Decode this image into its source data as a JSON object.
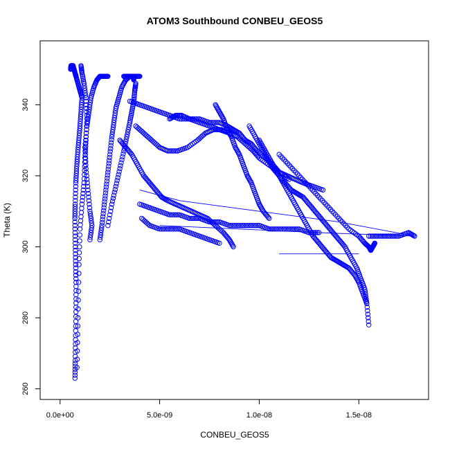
{
  "chart_data": {
    "type": "scatter",
    "title": "ATOM3 Southbound CONBEU_GEOS5",
    "xlabel": "CONBEU_GEOS5",
    "ylabel": "Theta (K)",
    "xlim": [
      -1e-09,
      1.85e-08
    ],
    "ylim": [
      257,
      358
    ],
    "x_ticks": [
      0,
      5e-09,
      1e-08,
      1.5e-08
    ],
    "x_tick_labels": [
      "0.0e+00",
      "5.0e-09",
      "1.0e-08",
      "1.5e-08"
    ],
    "y_ticks": [
      260,
      280,
      300,
      320,
      340
    ],
    "y_tick_labels": [
      "260",
      "280",
      "300",
      "320",
      "340"
    ],
    "color": "#0000ff",
    "marker": "open-circle",
    "grid": false,
    "legend": "none",
    "series": [
      {
        "x": [
          7.5e-10,
          7.6e-10,
          7.8e-10,
          8e-10,
          8e-10,
          7.8e-10,
          7.6e-10,
          7.4e-10,
          7.6e-10,
          7.9e-10,
          8.3e-10,
          8.8e-10,
          9.4e-10,
          1e-09,
          1.05e-09,
          1.1e-09,
          1e-09,
          9e-10,
          8e-10,
          7.5e-10,
          7e-10,
          6.5e-10,
          6e-10,
          5.5e-10,
          5.3e-10
        ],
        "y": [
          263,
          268,
          275,
          283,
          290,
          296,
          302,
          308,
          312,
          318,
          322,
          326,
          330,
          334,
          338,
          342,
          344,
          346,
          348,
          349,
          350,
          351,
          351,
          351,
          350
        ]
      },
      {
        "x": [
          8.5e-10,
          9e-10,
          9.5e-10,
          1e-09,
          1.1e-09,
          1.2e-09,
          1.25e-09,
          1.3e-09,
          1.35e-09,
          1.3e-09,
          1.2e-09,
          1.1e-09,
          1.05e-09
        ],
        "y": [
          266,
          280,
          295,
          305,
          312,
          318,
          325,
          330,
          336,
          342,
          346,
          349,
          351
        ]
      },
      {
        "x": [
          1.5e-09,
          1.6e-09,
          1.5e-09,
          1.4e-09,
          1.3e-09,
          1.25e-09,
          1.35e-09,
          1.45e-09,
          1.55e-09,
          1.7e-09,
          1.85e-09,
          2e-09,
          2.2e-09,
          2.4e-09
        ],
        "y": [
          302,
          306,
          310,
          316,
          322,
          328,
          334,
          338,
          342,
          345,
          347,
          348,
          348,
          348
        ]
      },
      {
        "x": [
          2e-09,
          2.1e-09,
          2.2e-09,
          2.3e-09,
          2.4e-09,
          2.5e-09,
          2.6e-09,
          2.7e-09,
          2.8e-09,
          2.95e-09,
          3.1e-09,
          3.3e-09,
          3.5e-09,
          3.65e-09,
          3.7e-09
        ],
        "y": [
          302,
          306,
          311,
          316,
          321,
          326,
          331,
          335,
          339,
          342,
          345,
          347,
          348,
          348,
          347
        ]
      },
      {
        "x": [
          2.4e-09,
          2.6e-09,
          2.8e-09,
          3e-09,
          3.2e-09,
          3.35e-09,
          3.5e-09,
          3.6e-09,
          3.7e-09,
          3.75e-09,
          3.8e-09
        ],
        "y": [
          306,
          312,
          317,
          322,
          327,
          331,
          335,
          338,
          341,
          344,
          346
        ]
      },
      {
        "x": [
          3e-09,
          3.3e-09,
          3.6e-09,
          3.9e-09,
          4.2e-09,
          4.5e-09,
          4.8e-09,
          5.1e-09,
          5.4e-09,
          5.8e-09,
          6.2e-09,
          6.6e-09,
          7e-09,
          7.4e-09,
          7.8e-09,
          8.2e-09,
          8.5e-09,
          8.7e-09
        ],
        "y": [
          330,
          328,
          326,
          323,
          320,
          318,
          316,
          314,
          313,
          312,
          311,
          310,
          309,
          308,
          306,
          304,
          302,
          300
        ]
      },
      {
        "x": [
          3.8e-09,
          4.2e-09,
          4.6e-09,
          5e-09,
          5.4e-09,
          5.9e-09,
          6.4e-09,
          6.9e-09,
          7.3e-09,
          7.7e-09,
          8.1e-09,
          8.5e-09,
          8.9e-09,
          9.3e-09,
          9.7e-09,
          1e-08,
          1.05e-08,
          1.1e-08,
          1.15e-08
        ],
        "y": [
          334,
          332,
          330,
          328,
          327,
          327,
          328,
          330,
          332,
          333,
          333,
          332,
          331,
          329,
          327,
          325,
          323,
          321,
          319
        ]
      },
      {
        "x": [
          5.5e-09,
          5.8e-09,
          6.1e-09,
          6.5e-09,
          7e-09,
          7.5e-09,
          8e-09,
          8.4e-09,
          8.7e-09,
          9e-09,
          9.3e-09,
          9.6e-09,
          9.9e-09,
          1.03e-08,
          1.07e-08,
          1.1e-08,
          1.14e-08,
          1.18e-08,
          1.22e-08,
          1.27e-08,
          1.32e-08
        ],
        "y": [
          336,
          337,
          337,
          336,
          336,
          335,
          335,
          334,
          333,
          332,
          330,
          329,
          327,
          325,
          323,
          321,
          320,
          319,
          318,
          317,
          316
        ]
      },
      {
        "x": [
          7.8e-09,
          8e-09,
          8.2e-09,
          8.4e-09,
          8.6e-09,
          8.8e-09,
          9e-09,
          9.2e-09,
          9.4e-09,
          9.6e-09,
          9.8e-09,
          1e-08,
          1.02e-08,
          1.05e-08
        ],
        "y": [
          340,
          338,
          336,
          333,
          331,
          328,
          326,
          323,
          320,
          318,
          315,
          312,
          310,
          308
        ]
      },
      {
        "x": [
          9.5e-09,
          9.8e-09,
          1.01e-08,
          1.04e-08,
          1.07e-08,
          1.1e-08,
          1.13e-08,
          1.16e-08,
          1.19e-08,
          1.22e-08,
          1.25e-08,
          1.28e-08,
          1.31e-08,
          1.34e-08,
          1.37e-08,
          1.4e-08,
          1.43e-08,
          1.46e-08,
          1.49e-08,
          1.51e-08,
          1.53e-08,
          1.54e-08,
          1.55e-08
        ],
        "y": [
          334,
          331,
          328,
          325,
          322,
          320,
          318,
          316,
          315,
          314,
          312,
          310,
          308,
          306,
          304,
          302,
          300,
          297,
          294,
          291,
          288,
          284,
          278
        ]
      },
      {
        "x": [
          1e-08,
          1.03e-08,
          1.06e-08,
          1.09e-08,
          1.12e-08,
          1.15e-08,
          1.18e-08,
          1.21e-08,
          1.24e-08,
          1.27e-08,
          1.3e-08,
          1.33e-08,
          1.36e-08,
          1.39e-08,
          1.42e-08,
          1.45e-08,
          1.48e-08,
          1.5e-08,
          1.52e-08,
          1.54e-08
        ],
        "y": [
          330,
          327,
          324,
          321,
          318,
          315,
          312,
          309,
          306,
          303,
          301,
          299,
          297,
          296,
          295,
          294,
          292,
          290,
          287,
          284
        ]
      },
      {
        "x": [
          1.1e-08,
          1.15e-08,
          1.2e-08,
          1.25e-08,
          1.3e-08,
          1.35e-08,
          1.4e-08,
          1.45e-08,
          1.5e-08,
          1.53e-08,
          1.55e-08,
          1.56e-08,
          1.57e-08,
          1.58e-08
        ],
        "y": [
          326,
          323,
          320,
          317,
          314,
          311,
          308,
          305,
          303,
          301,
          300,
          299,
          300,
          301
        ]
      },
      {
        "x": [
          4e-09,
          4.5e-09,
          5e-09,
          5.5e-09,
          6e-09,
          6.5e-09,
          7e-09,
          7.5e-09,
          8e-09,
          8.5e-09,
          9e-09,
          9.5e-09,
          1e-08,
          1.05e-08,
          1.1e-08,
          1.15e-08,
          1.2e-08,
          1.25e-08,
          1.3e-08
        ],
        "y": [
          312,
          311,
          310,
          309,
          309,
          308,
          308,
          307,
          307,
          306,
          306,
          306,
          306,
          305,
          305,
          305,
          305,
          304,
          304
        ]
      },
      {
        "x": [
          4.1e-09,
          4.5e-09,
          5e-09,
          5.5e-09,
          6e-09,
          6.5e-09,
          7e-09,
          7.5e-09,
          8e-09
        ],
        "y": [
          308,
          306,
          305,
          305,
          305,
          304,
          303,
          302,
          301
        ]
      },
      {
        "x": [
          3.2e-09,
          3.4e-09,
          3.6e-09,
          3.8e-09,
          4e-09
        ],
        "y": [
          348,
          348,
          348,
          348,
          348
        ]
      },
      {
        "x": [
          3.5e-09,
          4e-09,
          4.5e-09,
          5e-09,
          5.5e-09,
          6e-09,
          6.5e-09,
          7e-09,
          7.5e-09,
          8e-09,
          8.5e-09
        ],
        "y": [
          341,
          340,
          339,
          338,
          337,
          336,
          336,
          335,
          334,
          333,
          332
        ]
      },
      {
        "x": [
          1.55e-08,
          1.6e-08,
          1.65e-08,
          1.7e-08,
          1.75e-08,
          1.78e-08
        ],
        "y": [
          303,
          303,
          303,
          303,
          304,
          303
        ]
      }
    ],
    "connectors": [
      {
        "x": [
          1.78e-08,
          1.4e-08,
          1e-08,
          6e-09,
          4e-09
        ],
        "y": [
          303,
          307,
          310,
          313,
          316
        ]
      },
      {
        "x": [
          1.78e-08,
          1.3e-08,
          9e-09,
          5e-09
        ],
        "y": [
          303,
          304,
          305,
          306
        ]
      },
      {
        "x": [
          1.5e-08,
          1.1e-08
        ],
        "y": [
          298,
          298
        ]
      }
    ]
  }
}
